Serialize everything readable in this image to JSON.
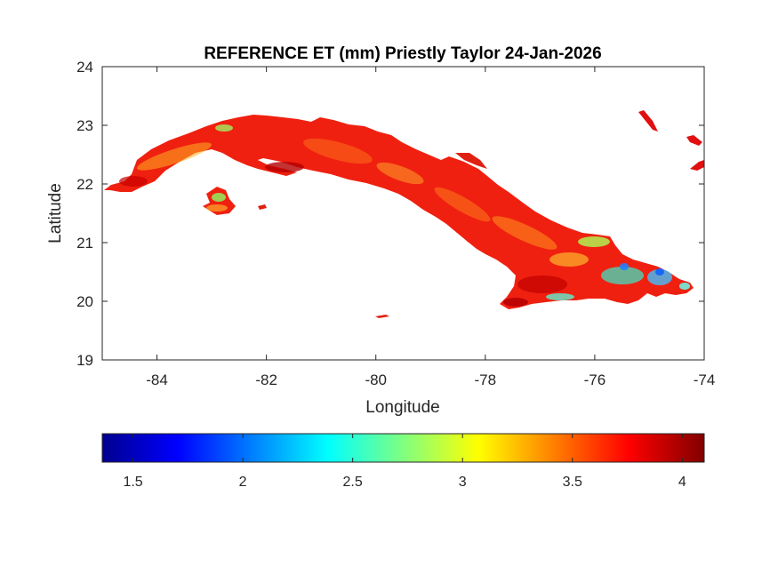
{
  "chart_data": {
    "type": "heatmap",
    "title": "REFERENCE ET (mm) Priestly Taylor 24-Jan-2026",
    "xlabel": "Longitude",
    "ylabel": "Latitude",
    "xlim": [
      -85,
      -74
    ],
    "ylim": [
      19,
      24
    ],
    "xticks": [
      -84,
      -82,
      -80,
      -78,
      -76,
      -74
    ],
    "yticks": [
      19,
      20,
      21,
      22,
      23,
      24
    ],
    "xtick_labels": [
      "-84",
      "-82",
      "-80",
      "-78",
      "-76",
      "-74"
    ],
    "ytick_labels": [
      "19",
      "20",
      "21",
      "22",
      "23",
      "24"
    ],
    "grid": false,
    "colormap": "jet",
    "colorbar": {
      "orientation": "horizontal",
      "placement": "bottom",
      "range": [
        1.36,
        4.1
      ],
      "ticks": [
        1.5,
        2,
        2.5,
        3,
        3.5,
        4
      ],
      "tick_labels": [
        "1.5",
        "2",
        "2.5",
        "3",
        "3.5",
        "4"
      ]
    },
    "colors": {
      "dominant": "#f02010",
      "high": "#c80000",
      "mid": "#ffb000",
      "low": "#30e0d0",
      "min": "#0060ff"
    }
  }
}
